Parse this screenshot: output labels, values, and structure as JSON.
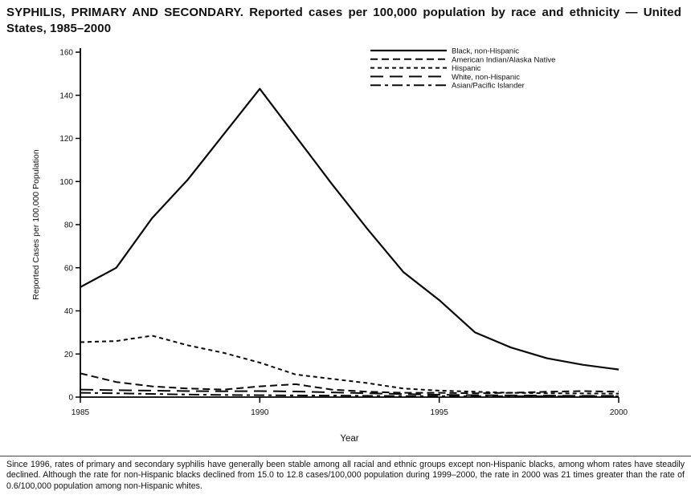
{
  "title": "SYPHILIS, PRIMARY AND SECONDARY. Reported cases per 100,000 population by race and ethnicity — United States, 1985–2000",
  "footnote": "Since 1996, rates of primary and secondary syphilis have generally been stable among all racial and ethnic groups except non-Hispanic blacks, among whom rates have steadily declined. Although the rate for non-Hispanic blacks declined from 15.0 to 12.8 cases/100,000 population during 1999–2000, the rate in 2000 was 21 times greater than the rate of 0.6/100,000 population among non-Hispanic whites.",
  "chart_data": {
    "type": "line",
    "xlabel": "Year",
    "ylabel": "Reported Cases per 100,000 Population",
    "ylim": [
      0,
      160
    ],
    "yticks": [
      0,
      20,
      40,
      60,
      80,
      100,
      120,
      140,
      160
    ],
    "xticks": [
      1985,
      1990,
      1995,
      2000
    ],
    "grid": false,
    "legend_position": "top-inside",
    "line_color": "#0a0a0a",
    "x": [
      1985,
      1986,
      1987,
      1988,
      1989,
      1990,
      1991,
      1992,
      1993,
      1994,
      1995,
      1996,
      1997,
      1998,
      1999,
      2000
    ],
    "series": [
      {
        "name": "Black, non-Hispanic",
        "line_style": "solid",
        "values": [
          51,
          60,
          83,
          101,
          122,
          143,
          121,
          99,
          78,
          58,
          45,
          30,
          23,
          18,
          15,
          12.8
        ]
      },
      {
        "name": "American Indian/Alaska Native",
        "line_style": "dashed",
        "values": [
          11,
          7,
          5,
          4,
          3.5,
          5,
          6,
          3.5,
          2.5,
          2,
          2,
          1.8,
          2,
          2.5,
          2.8,
          2.5
        ]
      },
      {
        "name": "Hispanic",
        "line_style": "short-dash",
        "values": [
          25.5,
          26,
          28.5,
          24,
          20.5,
          16,
          10.5,
          8.5,
          6.5,
          4,
          3,
          2.5,
          2,
          1.8,
          1.7,
          1.6
        ]
      },
      {
        "name": "White, non-Hispanic",
        "line_style": "long-dash",
        "values": [
          3.5,
          3.2,
          3,
          2.8,
          2.7,
          2.8,
          2.6,
          2.2,
          1.8,
          1.4,
          1.1,
          0.9,
          0.8,
          0.7,
          0.6,
          0.6
        ]
      },
      {
        "name": "Asian/Pacific Islander",
        "line_style": "dash-dot",
        "values": [
          2,
          1.8,
          1.5,
          1.2,
          1,
          0.9,
          0.8,
          0.7,
          0.6,
          0.5,
          0.5,
          0.4,
          0.4,
          0.4,
          0.4,
          0.4
        ]
      }
    ]
  }
}
